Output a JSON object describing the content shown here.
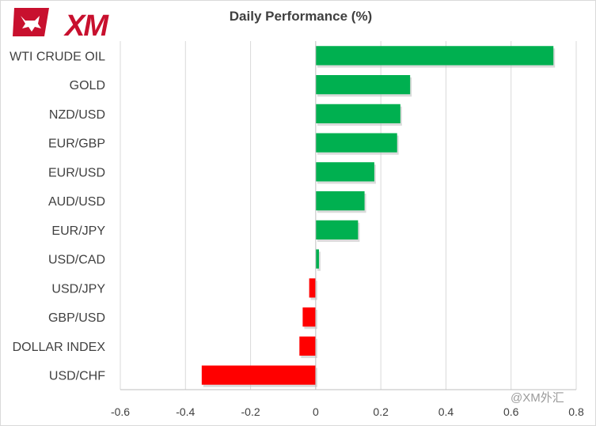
{
  "logo": {
    "text": "XM"
  },
  "watermark": "@XM外汇",
  "chart_data": {
    "type": "bar",
    "orientation": "horizontal",
    "title": "Daily Performance  (%)",
    "categories": [
      "WTI CRUDE OIL",
      "GOLD",
      "NZD/USD",
      "EUR/GBP",
      "EUR/USD",
      "AUD/USD",
      "EUR/JPY",
      "USD/CAD",
      "USD/JPY",
      "GBP/USD",
      "DOLLAR INDEX",
      "USD/CHF"
    ],
    "values": [
      0.73,
      0.29,
      0.26,
      0.25,
      0.18,
      0.15,
      0.13,
      0.01,
      -0.02,
      -0.04,
      -0.05,
      -0.35
    ],
    "xlim": [
      -0.6,
      0.8
    ],
    "xticks": [
      "-0.6",
      "-0.4",
      "-0.2",
      "0",
      "0.2",
      "0.4",
      "0.6",
      "0.8"
    ],
    "xtick_values": [
      -0.6,
      -0.4,
      -0.2,
      0,
      0.2,
      0.4,
      0.6,
      0.8
    ],
    "grid": true,
    "legend": false,
    "colors": {
      "positive": "#00b050",
      "negative": "#ff0000",
      "grid": "#d9d9d9",
      "axis": "#bfbfbf"
    }
  }
}
